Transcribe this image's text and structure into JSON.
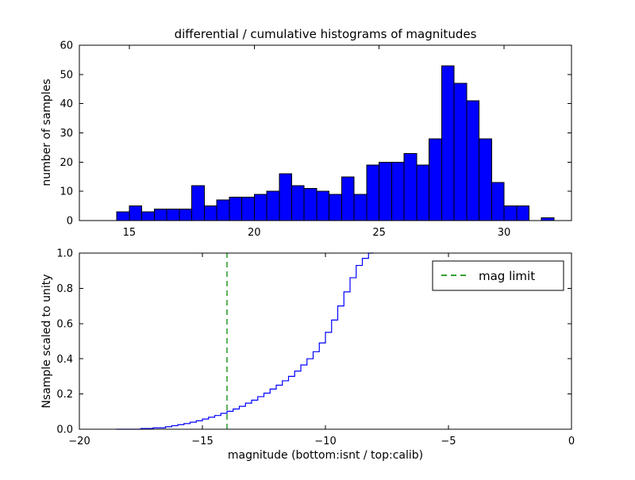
{
  "colors": {
    "background": "#ffffff",
    "bar_fill": "#0000ff",
    "bar_edge": "#000000",
    "step_line": "#0000ff",
    "mag_limit_line": "#33a033",
    "frame": "#000000",
    "text": "#000000"
  },
  "chart_data": [
    {
      "type": "bar",
      "subtype": "histogram",
      "title": "differential / cumulative histograms of magnitudes",
      "ylabel": "number of samples",
      "xlabel": "",
      "bin_start": 14.5,
      "bin_width": 0.5,
      "values": [
        3,
        5,
        3,
        4,
        4,
        4,
        12,
        5,
        7,
        8,
        8,
        9,
        10,
        16,
        12,
        11,
        10,
        9,
        15,
        9,
        19,
        20,
        20,
        23,
        19,
        28,
        53,
        47,
        41,
        28,
        13,
        5,
        5,
        0,
        1
      ],
      "xlim": [
        13.0,
        32.7
      ],
      "ylim": [
        0,
        60
      ],
      "xtick_values": [
        15,
        20,
        25,
        30
      ],
      "xtick_labels": [
        "15",
        "20",
        "25",
        "30"
      ],
      "ytick_values": [
        0,
        10,
        20,
        30,
        40,
        50,
        60
      ],
      "ytick_labels": [
        "0",
        "10",
        "20",
        "30",
        "40",
        "50",
        "60"
      ],
      "grid": false
    },
    {
      "type": "line",
      "subtype": "cumulative-step",
      "title": "",
      "ylabel": "Nsample scaled to unity",
      "xlabel": "magnitude (bottom:isnt / top:calib)",
      "xlim": [
        -20,
        0
      ],
      "ylim": [
        0.0,
        1.0
      ],
      "xtick_values": [
        -20,
        -15,
        -10,
        -5,
        0
      ],
      "xtick_labels": [
        "−20",
        "−15",
        "−10",
        "−5",
        "0"
      ],
      "ytick_values": [
        0.0,
        0.2,
        0.4,
        0.6,
        0.8,
        1.0
      ],
      "ytick_labels": [
        "0.0",
        "0.2",
        "0.4",
        "0.6",
        "0.8",
        "1.0"
      ],
      "legend_label": "mag limit",
      "legend_position": "upper right",
      "mag_limit_x": -14,
      "step_points": [
        [
          -18.5,
          0.0
        ],
        [
          -17.5,
          0.004
        ],
        [
          -17.0,
          0.008
        ],
        [
          -16.5,
          0.014
        ],
        [
          -16.25,
          0.02
        ],
        [
          -16.0,
          0.026
        ],
        [
          -15.75,
          0.032
        ],
        [
          -15.5,
          0.04
        ],
        [
          -15.25,
          0.048
        ],
        [
          -15.0,
          0.058
        ],
        [
          -14.75,
          0.068
        ],
        [
          -14.5,
          0.078
        ],
        [
          -14.25,
          0.09
        ],
        [
          -14.0,
          0.102
        ],
        [
          -13.75,
          0.115
        ],
        [
          -13.5,
          0.13
        ],
        [
          -13.25,
          0.148
        ],
        [
          -13.0,
          0.165
        ],
        [
          -12.75,
          0.185
        ],
        [
          -12.5,
          0.205
        ],
        [
          -12.25,
          0.228
        ],
        [
          -12.0,
          0.25
        ],
        [
          -11.75,
          0.275
        ],
        [
          -11.5,
          0.3
        ],
        [
          -11.25,
          0.33
        ],
        [
          -11.0,
          0.365
        ],
        [
          -10.75,
          0.4
        ],
        [
          -10.5,
          0.44
        ],
        [
          -10.25,
          0.49
        ],
        [
          -10.0,
          0.55
        ],
        [
          -9.75,
          0.62
        ],
        [
          -9.5,
          0.7
        ],
        [
          -9.25,
          0.78
        ],
        [
          -9.0,
          0.86
        ],
        [
          -8.75,
          0.93
        ],
        [
          -8.5,
          0.97
        ],
        [
          -8.25,
          1.0
        ],
        [
          -8.05,
          1.0
        ]
      ],
      "grid": false
    }
  ]
}
